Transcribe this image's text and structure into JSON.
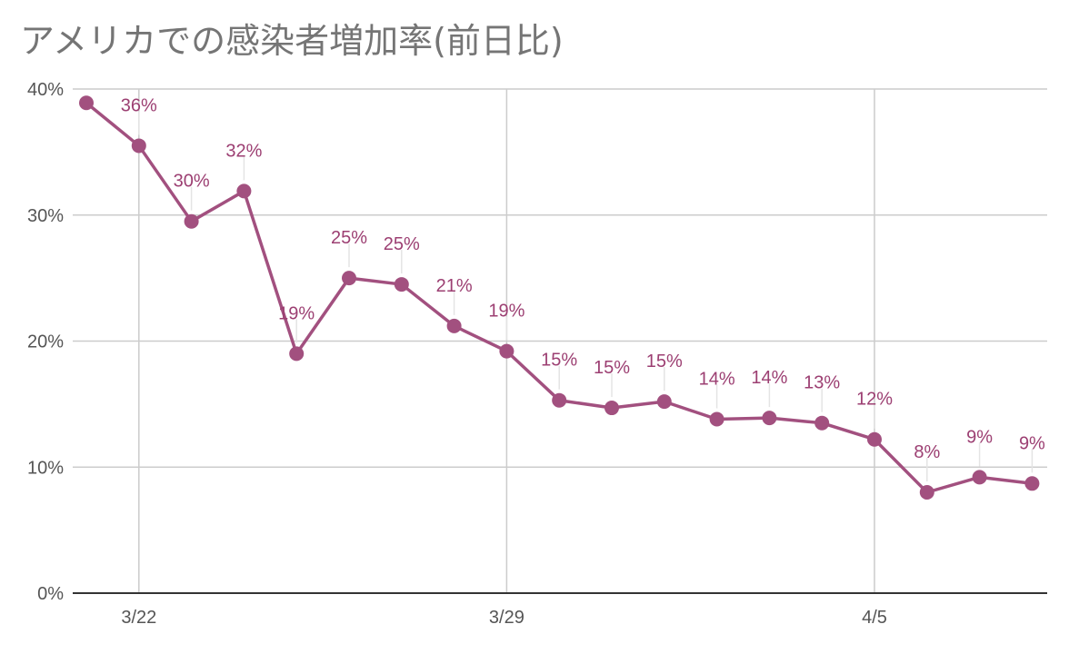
{
  "chart_data": {
    "type": "line",
    "title": "アメリカでの感染者増加率(前日比)",
    "xlabel": "",
    "ylabel": "",
    "ylim": [
      0,
      40
    ],
    "y_ticks": [
      "0%",
      "10%",
      "20%",
      "30%",
      "40%"
    ],
    "x_ticks": [
      {
        "label": "3/22",
        "index": 1
      },
      {
        "label": "3/29",
        "index": 8
      },
      {
        "label": "4/5",
        "index": 15
      }
    ],
    "x": [
      "3/21",
      "3/22",
      "3/23",
      "3/24",
      "3/25",
      "3/26",
      "3/27",
      "3/28",
      "3/29",
      "3/30",
      "3/31",
      "4/1",
      "4/2",
      "4/3",
      "4/4",
      "4/5",
      "4/6",
      "4/7",
      "4/8"
    ],
    "series": [
      {
        "values": [
          38.9,
          35.5,
          29.5,
          31.9,
          19.0,
          25.0,
          24.5,
          21.2,
          19.2,
          15.3,
          14.7,
          15.2,
          13.8,
          13.9,
          13.5,
          12.2,
          8.0,
          9.2,
          8.7
        ],
        "data_labels": [
          null,
          "36%",
          "30%",
          "32%",
          "19%",
          "25%",
          "25%",
          "21%",
          "19%",
          "15%",
          "15%",
          "15%",
          "14%",
          "14%",
          "13%",
          "12%",
          "8%",
          "9%",
          "9%"
        ]
      }
    ],
    "colors": {
      "series": "#a2507f",
      "label": "#9c3f72",
      "grid": "#cccccc",
      "axis": "#333333",
      "tick_text": "#555555",
      "title": "#757575"
    },
    "grid": true,
    "legend": "none"
  }
}
